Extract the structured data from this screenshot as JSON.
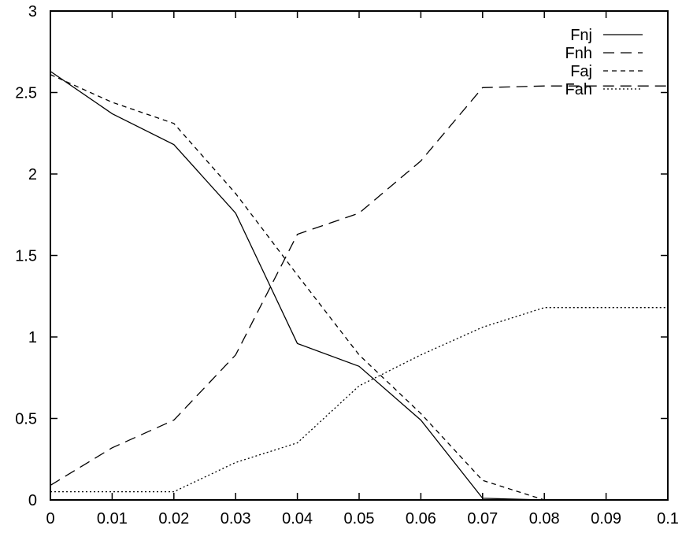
{
  "chart_data": {
    "type": "line",
    "title": "",
    "xlabel": "",
    "ylabel": "",
    "xlim": [
      0,
      0.1
    ],
    "ylim": [
      0,
      3
    ],
    "xticks": [
      0,
      0.01,
      0.02,
      0.03,
      0.04,
      0.05,
      0.06,
      0.07,
      0.08,
      0.09,
      0.1
    ],
    "yticks": [
      0,
      0.5,
      1,
      1.5,
      2,
      2.5,
      3
    ],
    "xtick_labels": [
      "0",
      "0.01",
      "0.02",
      "0.03",
      "0.04",
      "0.05",
      "0.06",
      "0.07",
      "0.08",
      "0.09",
      "0.1"
    ],
    "ytick_labels": [
      "0",
      "0.5",
      "1",
      "1.5",
      "2",
      "2.5",
      "3"
    ],
    "grid": false,
    "legend_position": "top-right",
    "series": [
      {
        "name": "Fnj",
        "dash": "solid",
        "x": [
          0,
          0.01,
          0.02,
          0.03,
          0.04,
          0.05,
          0.06,
          0.07,
          0.08
        ],
        "y": [
          2.63,
          2.37,
          2.18,
          1.76,
          0.96,
          0.82,
          0.49,
          0.01,
          0.0
        ]
      },
      {
        "name": "Fnh",
        "dash": "long-dash",
        "x": [
          0,
          0.01,
          0.02,
          0.03,
          0.04,
          0.05,
          0.06,
          0.07,
          0.08,
          0.1
        ],
        "y": [
          0.09,
          0.32,
          0.49,
          0.89,
          1.63,
          1.76,
          2.08,
          2.53,
          2.54,
          2.54
        ]
      },
      {
        "name": "Faj",
        "dash": "short-dash",
        "x": [
          0,
          0.01,
          0.02,
          0.03,
          0.04,
          0.05,
          0.06,
          0.07,
          0.08
        ],
        "y": [
          2.61,
          2.44,
          2.31,
          1.88,
          1.38,
          0.89,
          0.53,
          0.12,
          0.0
        ]
      },
      {
        "name": "Fah",
        "dash": "dotted",
        "x": [
          0,
          0.01,
          0.02,
          0.03,
          0.04,
          0.05,
          0.06,
          0.07,
          0.08,
          0.1
        ],
        "y": [
          0.05,
          0.05,
          0.05,
          0.23,
          0.35,
          0.7,
          0.89,
          1.06,
          1.18,
          1.18
        ]
      }
    ]
  }
}
